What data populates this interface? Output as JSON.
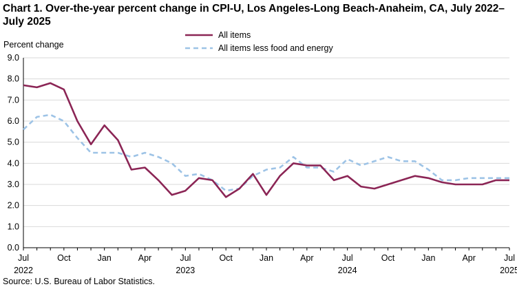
{
  "title": "Chart 1. Over-the-year percent change in CPI-U, Los Angeles-Long Beach-Anaheim, CA, July 2022–July 2025",
  "source": "Source: U.S. Bureau of Labor Statistics.",
  "chart_data": {
    "type": "line",
    "title": "Chart 1. Over-the-year percent change in CPI-U, Los Angeles-Long Beach-Anaheim, CA, July 2022–July 2025",
    "xlabel": "",
    "ylabel": "Percent change",
    "ylim": [
      0,
      9
    ],
    "yticks": [
      "0.0",
      "1.0",
      "2.0",
      "3.0",
      "4.0",
      "5.0",
      "6.0",
      "7.0",
      "8.0",
      "9.0"
    ],
    "x": [
      "Jul 2022",
      "Aug 2022",
      "Sep 2022",
      "Oct 2022",
      "Nov 2022",
      "Dec 2022",
      "Jan 2023",
      "Feb 2023",
      "Mar 2023",
      "Apr 2023",
      "May 2023",
      "Jun 2023",
      "Jul 2023",
      "Aug 2023",
      "Sep 2023",
      "Oct 2023",
      "Nov 2023",
      "Dec 2023",
      "Jan 2024",
      "Feb 2024",
      "Mar 2024",
      "Apr 2024",
      "May 2024",
      "Jun 2024",
      "Jul 2024",
      "Aug 2024",
      "Sep 2024",
      "Oct 2024",
      "Nov 2024",
      "Dec 2024",
      "Jan 2025",
      "Feb 2025",
      "Mar 2025",
      "Apr 2025",
      "May 2025",
      "Jun 2025",
      "Jul 2025"
    ],
    "xticks": [
      {
        "index": 0,
        "month": "Jul",
        "year": "2022"
      },
      {
        "index": 3,
        "month": "Oct",
        "year": ""
      },
      {
        "index": 6,
        "month": "Jan",
        "year": ""
      },
      {
        "index": 9,
        "month": "Apr",
        "year": ""
      },
      {
        "index": 12,
        "month": "Jul",
        "year": "2023"
      },
      {
        "index": 15,
        "month": "Oct",
        "year": ""
      },
      {
        "index": 18,
        "month": "Jan",
        "year": ""
      },
      {
        "index": 21,
        "month": "Apr",
        "year": ""
      },
      {
        "index": 24,
        "month": "Jul",
        "year": "2024"
      },
      {
        "index": 27,
        "month": "Oct",
        "year": ""
      },
      {
        "index": 30,
        "month": "Jan",
        "year": ""
      },
      {
        "index": 33,
        "month": "Apr",
        "year": ""
      },
      {
        "index": 36,
        "month": "Jul",
        "year": "2025"
      }
    ],
    "grid": true,
    "legend_position": "top",
    "series": [
      {
        "name": "All items",
        "color": "#8B2555",
        "style": "solid",
        "values": [
          7.7,
          7.6,
          7.8,
          7.5,
          6.0,
          4.9,
          5.8,
          5.1,
          3.7,
          3.8,
          3.2,
          2.5,
          2.7,
          3.3,
          3.2,
          2.4,
          2.8,
          3.5,
          2.5,
          3.4,
          4.0,
          3.9,
          3.9,
          3.2,
          3.4,
          2.9,
          2.8,
          3.0,
          3.2,
          3.4,
          3.3,
          3.1,
          3.0,
          3.0,
          3.0,
          3.2,
          3.2
        ]
      },
      {
        "name": "All items less food and energy",
        "color": "#9DC3E6",
        "style": "dashed",
        "values": [
          5.6,
          6.2,
          6.3,
          6.0,
          5.2,
          4.5,
          4.5,
          4.5,
          4.3,
          4.5,
          4.3,
          4.0,
          3.4,
          3.5,
          3.2,
          2.7,
          2.8,
          3.4,
          3.7,
          3.8,
          4.3,
          3.8,
          3.8,
          3.6,
          4.2,
          3.9,
          4.1,
          4.3,
          4.1,
          4.1,
          3.7,
          3.2,
          3.2,
          3.3,
          3.3,
          3.3,
          3.3
        ]
      }
    ]
  }
}
